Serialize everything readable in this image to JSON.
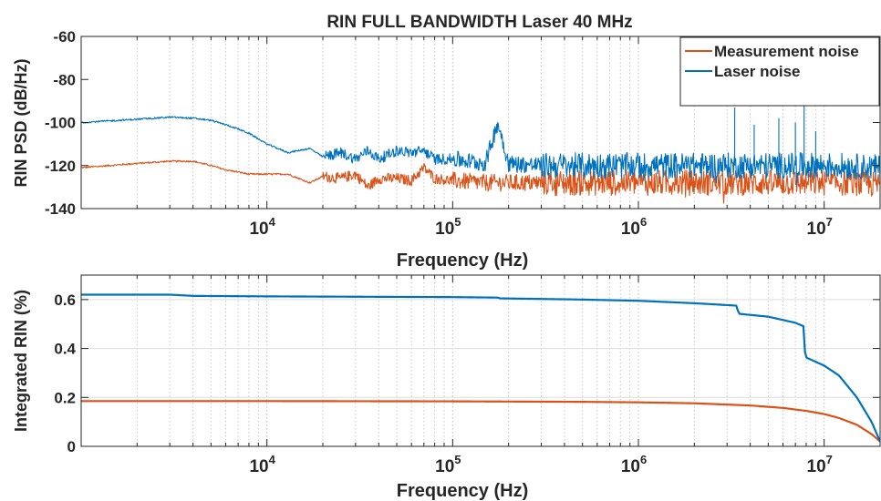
{
  "chart_data": [
    {
      "type": "line",
      "title": "RIN FULL BANDWIDTH Laser 40 MHz",
      "xlabel": "Frequency (Hz)",
      "ylabel": "RIN PSD (dB/Hz)",
      "xscale": "log",
      "xlim": [
        1000,
        20000000
      ],
      "ylim": [
        -140,
        -60
      ],
      "xticks": [
        10000,
        100000,
        1000000,
        10000000
      ],
      "xtick_labels": [
        {
          "base": "10",
          "exp": "4"
        },
        {
          "base": "10",
          "exp": "5"
        },
        {
          "base": "10",
          "exp": "6"
        },
        {
          "base": "10",
          "exp": "7"
        }
      ],
      "yticks": [
        -60,
        -80,
        -100,
        -120,
        -140
      ],
      "ytick_labels": [
        "-60",
        "-80",
        "-100",
        "-120",
        "-140"
      ],
      "grid": "x-major-minor-dotted",
      "legend": "top-right",
      "colors": {
        "measurement": "#D95319",
        "laser": "#0072BD"
      },
      "series": [
        {
          "name": "Measurement noise",
          "color": "#D95319",
          "x": [
            1000,
            2000,
            3000,
            4000,
            5000,
            6000,
            7000,
            8000,
            10000,
            13000,
            17000,
            20000,
            25000,
            30000,
            35000,
            40000,
            50000,
            60000,
            70000,
            80000,
            100000,
            150000,
            200000,
            300000,
            500000,
            1000000,
            2000000,
            3500000,
            5000000,
            8000000,
            12000000,
            20000000
          ],
          "y": [
            -121,
            -119,
            -118,
            -118,
            -120,
            -122,
            -123,
            -124,
            -124,
            -124,
            -128,
            -125,
            -126,
            -124,
            -130,
            -126,
            -126,
            -127,
            -121,
            -126,
            -127,
            -128,
            -128,
            -128,
            -128,
            -128,
            -128,
            -128,
            -128,
            -128,
            -128,
            -129
          ]
        },
        {
          "name": "Laser noise",
          "color": "#0072BD",
          "x": [
            1000,
            2000,
            3000,
            4000,
            5000,
            6000,
            7000,
            8000,
            10000,
            13000,
            17000,
            20000,
            25000,
            30000,
            35000,
            40000,
            50000,
            60000,
            70000,
            80000,
            100000,
            150000,
            175000,
            200000,
            300000,
            500000,
            1000000,
            2000000,
            3500000,
            5000000,
            8000000,
            12000000,
            20000000
          ],
          "y": [
            -100,
            -98.5,
            -97.5,
            -98,
            -99,
            -101,
            -103,
            -105,
            -110,
            -114,
            -112,
            -116,
            -114,
            -117,
            -113,
            -117,
            -113,
            -114,
            -113,
            -117,
            -117,
            -119,
            -100,
            -119,
            -120,
            -120,
            -120,
            -120,
            -120,
            -120,
            -120,
            -120,
            -121
          ]
        }
      ],
      "peaks": [
        {
          "x": 175000,
          "y": -100
        },
        {
          "x": 3300000,
          "y": -93
        },
        {
          "x": 4200000,
          "y": -101
        },
        {
          "x": 5700000,
          "y": -98
        },
        {
          "x": 7000000,
          "y": -100
        },
        {
          "x": 7800000,
          "y": -86
        },
        {
          "x": 9000000,
          "y": -104
        }
      ]
    },
    {
      "type": "line",
      "xlabel": "Frequency (Hz)",
      "ylabel": "Integrated RIN (%)",
      "xscale": "log",
      "xlim": [
        1000,
        20000000
      ],
      "ylim": [
        0,
        0.7
      ],
      "xticks": [
        10000,
        100000,
        1000000,
        10000000
      ],
      "xtick_labels": [
        {
          "base": "10",
          "exp": "4"
        },
        {
          "base": "10",
          "exp": "5"
        },
        {
          "base": "10",
          "exp": "6"
        },
        {
          "base": "10",
          "exp": "7"
        }
      ],
      "yticks": [
        0,
        0.2,
        0.4,
        0.6
      ],
      "ytick_labels": [
        "0",
        "0.2",
        "0.4",
        "0.6"
      ],
      "grid": "x-major-minor-dotted, y-major-solid",
      "series": [
        {
          "name": "Measurement noise",
          "color": "#D95319",
          "x": [
            1000,
            10000,
            100000,
            500000,
            1000000,
            2000000,
            4000000,
            6000000,
            8000000,
            10000000,
            12000000,
            15000000,
            18000000,
            20000000
          ],
          "y": [
            0.185,
            0.185,
            0.184,
            0.182,
            0.18,
            0.176,
            0.167,
            0.157,
            0.145,
            0.132,
            0.116,
            0.088,
            0.05,
            0.02
          ]
        },
        {
          "name": "Laser noise",
          "color": "#0072BD",
          "x": [
            1000,
            3000,
            4000,
            10000,
            100000,
            175000,
            180000,
            500000,
            1000000,
            2000000,
            3400000,
            3450000,
            5000000,
            7000000,
            7800000,
            7900000,
            10000000,
            12000000,
            15000000,
            18000000,
            20000000
          ],
          "y": [
            0.62,
            0.62,
            0.615,
            0.613,
            0.61,
            0.608,
            0.605,
            0.6,
            0.595,
            0.585,
            0.575,
            0.542,
            0.53,
            0.505,
            0.49,
            0.365,
            0.33,
            0.29,
            0.2,
            0.1,
            0.02
          ]
        }
      ]
    }
  ]
}
